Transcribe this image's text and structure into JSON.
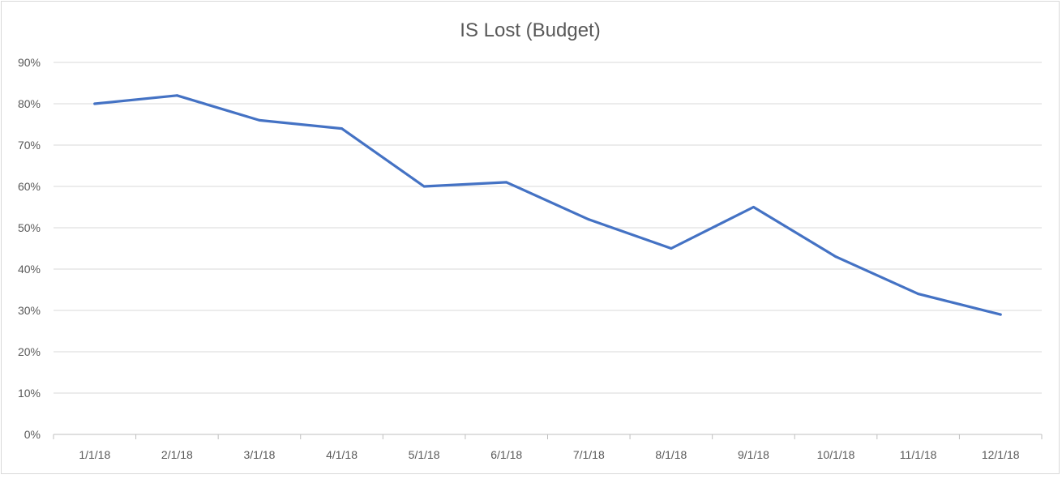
{
  "chart_data": {
    "type": "line",
    "title": "IS Lost (Budget)",
    "xlabel": "",
    "ylabel": "",
    "categories": [
      "1/1/18",
      "2/1/18",
      "3/1/18",
      "4/1/18",
      "5/1/18",
      "6/1/18",
      "7/1/18",
      "8/1/18",
      "9/1/18",
      "10/1/18",
      "11/1/18",
      "12/1/18"
    ],
    "series": [
      {
        "values": [
          0.8,
          0.82,
          0.76,
          0.74,
          0.6,
          0.61,
          0.52,
          0.45,
          0.55,
          0.43,
          0.34,
          0.29
        ],
        "color": "#4472c4"
      }
    ],
    "ylim": [
      0,
      0.9
    ],
    "yticks": [
      "0%",
      "10%",
      "20%",
      "30%",
      "40%",
      "50%",
      "60%",
      "70%",
      "80%",
      "90%"
    ],
    "grid": true,
    "legend": "none"
  }
}
